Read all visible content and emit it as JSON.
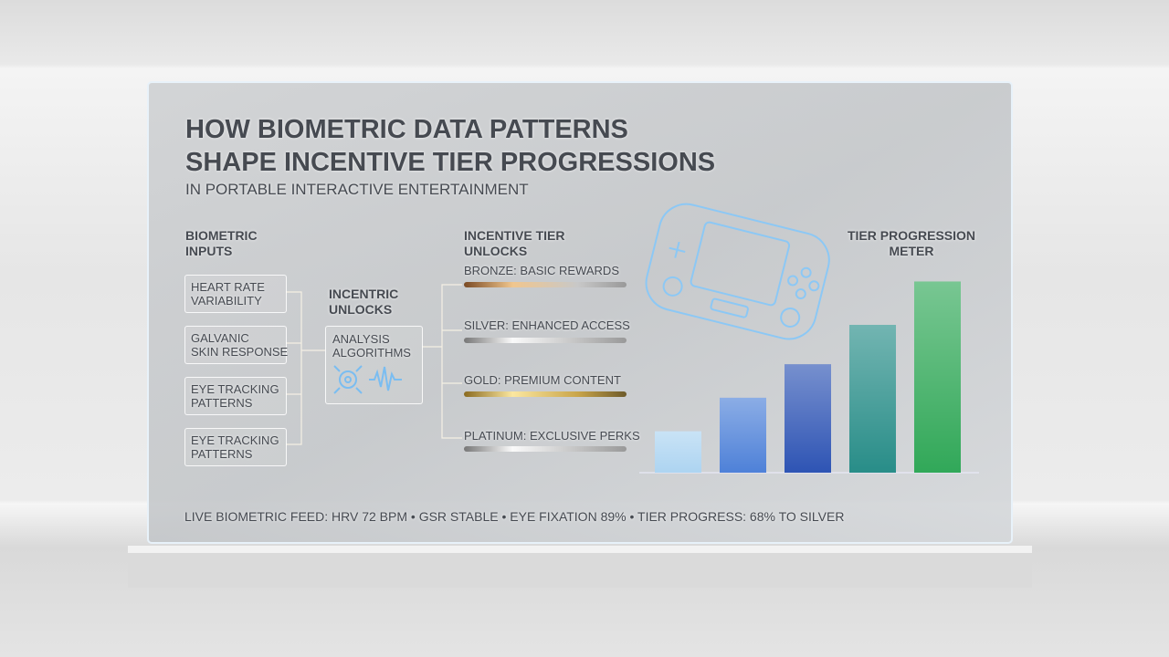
{
  "title": {
    "lines": [
      "HOW BIOMETRIC DATA PATTERNS",
      "SHAPE INCENTIVE TIER PROGRESSIONS"
    ]
  },
  "subtitle": "IN PORTABLE INTERACTIVE ENTERTAINMENT",
  "inputs": {
    "heading": [
      "BIOMETRIC",
      "INPUTS"
    ],
    "items": [
      {
        "lines": [
          "HEART RATE",
          "VARIABILITY"
        ]
      },
      {
        "lines": [
          "GALVANIC",
          "SKIN RESPONSE"
        ]
      },
      {
        "lines": [
          "EYE TRACKING",
          "PATTERNS"
        ]
      },
      {
        "lines": [
          "EYE TRACKING",
          "PATTERNS"
        ]
      }
    ]
  },
  "analysis": {
    "heading": [
      "INCENTRIC",
      "UNLOCKS"
    ],
    "box": [
      "ANALYSIS",
      "ALGORITHMS"
    ]
  },
  "tiers": {
    "heading": [
      "INCENTIVE TIER",
      "UNLOCKS"
    ],
    "items": [
      "BRONZE: BASIC REWARDS",
      "SILVER: ENHANCED ACCESS",
      "GOLD: PREMIUM CONTENT",
      "PLATINUM: EXCLUSIVE PERKS"
    ]
  },
  "chart_data": {
    "type": "bar",
    "title": [
      "TIER PROGRESSION",
      "METER"
    ],
    "ylim": [
      0,
      100
    ],
    "series": [
      {
        "color": "#b8dcf5",
        "values": [
          21,
          38,
          55,
          75,
          97
        ]
      }
    ],
    "colors": [
      "#a9d4f4",
      "#3f78d8",
      "#1c46b0",
      "#15857f",
      "#1fa34a"
    ]
  },
  "footer": "LIVE BIOMETRIC FEED: HRV 72 BPM • GSR STABLE • EYE FIXATION 89% • TIER PROGRESS: 68% TO SILVER"
}
